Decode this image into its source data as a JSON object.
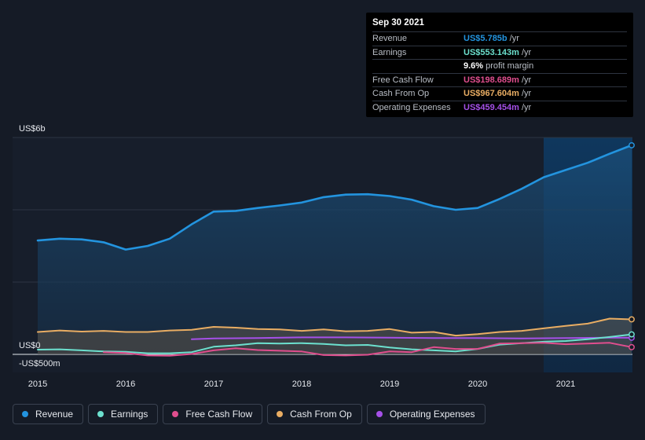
{
  "tooltip": {
    "date": "Sep 30 2021",
    "rows": [
      {
        "label": "Revenue",
        "value": "US$5.785b",
        "unit": "/yr",
        "color": "#2394df"
      },
      {
        "label": "Earnings",
        "value": "US$553.143m",
        "unit": "/yr",
        "color": "#6ce0ce"
      },
      {
        "label": "",
        "value": "9.6%",
        "unit": "profit margin",
        "color": "#ffffff"
      },
      {
        "label": "Free Cash Flow",
        "value": "US$198.689m",
        "unit": "/yr",
        "color": "#e04e8e"
      },
      {
        "label": "Cash From Op",
        "value": "US$967.604m",
        "unit": "/yr",
        "color": "#e9ad63"
      },
      {
        "label": "Operating Expenses",
        "value": "US$459.454m",
        "unit": "/yr",
        "color": "#a550e8"
      }
    ]
  },
  "legend": [
    {
      "label": "Revenue",
      "color": "#2394df"
    },
    {
      "label": "Earnings",
      "color": "#6ce0ce"
    },
    {
      "label": "Free Cash Flow",
      "color": "#e04e8e"
    },
    {
      "label": "Cash From Op",
      "color": "#e9ad63"
    },
    {
      "label": "Operating Expenses",
      "color": "#a550e8"
    }
  ],
  "chart_data": {
    "type": "area",
    "title": "",
    "ylim": [
      -500,
      6000
    ],
    "y_tick_labels": [
      {
        "value": 6000,
        "label": "US$6b"
      },
      {
        "value": 0,
        "label": "US$0"
      },
      {
        "value": -500,
        "label": "-US$500m"
      }
    ],
    "x_tick_labels": [
      "2015",
      "2016",
      "2017",
      "2018",
      "2019",
      "2020",
      "2021"
    ],
    "xlim": [
      2014.85,
      2021.75
    ],
    "highlight_start": 2020.75,
    "grid": true,
    "series": [
      {
        "name": "Revenue",
        "color": "#2394df",
        "fill": true,
        "points": [
          [
            2015.0,
            3150
          ],
          [
            2015.25,
            3200
          ],
          [
            2015.5,
            3180
          ],
          [
            2015.75,
            3100
          ],
          [
            2016.0,
            2900
          ],
          [
            2016.25,
            3000
          ],
          [
            2016.5,
            3200
          ],
          [
            2016.75,
            3600
          ],
          [
            2017.0,
            3950
          ],
          [
            2017.25,
            3970
          ],
          [
            2017.5,
            4050
          ],
          [
            2017.75,
            4120
          ],
          [
            2018.0,
            4200
          ],
          [
            2018.25,
            4350
          ],
          [
            2018.5,
            4420
          ],
          [
            2018.75,
            4430
          ],
          [
            2019.0,
            4380
          ],
          [
            2019.25,
            4280
          ],
          [
            2019.5,
            4100
          ],
          [
            2019.75,
            4000
          ],
          [
            2020.0,
            4050
          ],
          [
            2020.25,
            4300
          ],
          [
            2020.5,
            4580
          ],
          [
            2020.75,
            4900
          ],
          [
            2021.0,
            5100
          ],
          [
            2021.25,
            5300
          ],
          [
            2021.5,
            5550
          ],
          [
            2021.75,
            5785
          ]
        ]
      },
      {
        "name": "Cash From Op",
        "color": "#e9ad63",
        "fill": true,
        "points": [
          [
            2015.0,
            620
          ],
          [
            2015.25,
            660
          ],
          [
            2015.5,
            630
          ],
          [
            2015.75,
            650
          ],
          [
            2016.0,
            620
          ],
          [
            2016.25,
            620
          ],
          [
            2016.5,
            660
          ],
          [
            2016.75,
            680
          ],
          [
            2017.0,
            760
          ],
          [
            2017.25,
            740
          ],
          [
            2017.5,
            700
          ],
          [
            2017.75,
            690
          ],
          [
            2018.0,
            650
          ],
          [
            2018.25,
            690
          ],
          [
            2018.5,
            640
          ],
          [
            2018.75,
            650
          ],
          [
            2019.0,
            700
          ],
          [
            2019.25,
            600
          ],
          [
            2019.5,
            620
          ],
          [
            2019.75,
            520
          ],
          [
            2020.0,
            560
          ],
          [
            2020.25,
            620
          ],
          [
            2020.5,
            650
          ],
          [
            2020.75,
            720
          ],
          [
            2021.0,
            790
          ],
          [
            2021.25,
            850
          ],
          [
            2021.5,
            990
          ],
          [
            2021.75,
            968
          ]
        ]
      },
      {
        "name": "Operating Expenses",
        "color": "#a550e8",
        "fill": false,
        "points": [
          [
            2016.75,
            420
          ],
          [
            2017.0,
            440
          ],
          [
            2017.5,
            450
          ],
          [
            2018.0,
            470
          ],
          [
            2018.5,
            470
          ],
          [
            2019.0,
            460
          ],
          [
            2019.5,
            450
          ],
          [
            2020.0,
            450
          ],
          [
            2020.5,
            440
          ],
          [
            2021.0,
            450
          ],
          [
            2021.5,
            460
          ],
          [
            2021.75,
            459
          ]
        ]
      },
      {
        "name": "Earnings",
        "color": "#6ce0ce",
        "fill": false,
        "points": [
          [
            2015.0,
            130
          ],
          [
            2015.25,
            140
          ],
          [
            2015.5,
            110
          ],
          [
            2015.75,
            80
          ],
          [
            2016.0,
            70
          ],
          [
            2016.25,
            30
          ],
          [
            2016.5,
            30
          ],
          [
            2016.75,
            60
          ],
          [
            2017.0,
            210
          ],
          [
            2017.25,
            250
          ],
          [
            2017.5,
            310
          ],
          [
            2017.75,
            300
          ],
          [
            2018.0,
            310
          ],
          [
            2018.25,
            290
          ],
          [
            2018.5,
            250
          ],
          [
            2018.75,
            260
          ],
          [
            2019.0,
            190
          ],
          [
            2019.25,
            140
          ],
          [
            2019.5,
            110
          ],
          [
            2019.75,
            80
          ],
          [
            2020.0,
            150
          ],
          [
            2020.25,
            270
          ],
          [
            2020.5,
            310
          ],
          [
            2020.75,
            350
          ],
          [
            2021.0,
            370
          ],
          [
            2021.25,
            420
          ],
          [
            2021.5,
            480
          ],
          [
            2021.75,
            553
          ]
        ]
      },
      {
        "name": "Free Cash Flow",
        "color": "#e04e8e",
        "fill": false,
        "points": [
          [
            2015.75,
            60
          ],
          [
            2016.0,
            40
          ],
          [
            2016.25,
            -30
          ],
          [
            2016.5,
            -40
          ],
          [
            2016.75,
            10
          ],
          [
            2017.0,
            110
          ],
          [
            2017.25,
            170
          ],
          [
            2017.5,
            120
          ],
          [
            2017.75,
            100
          ],
          [
            2018.0,
            80
          ],
          [
            2018.25,
            -20
          ],
          [
            2018.5,
            -30
          ],
          [
            2018.75,
            -10
          ],
          [
            2019.0,
            80
          ],
          [
            2019.25,
            60
          ],
          [
            2019.5,
            200
          ],
          [
            2019.75,
            150
          ],
          [
            2020.0,
            150
          ],
          [
            2020.25,
            300
          ],
          [
            2020.5,
            310
          ],
          [
            2020.75,
            320
          ],
          [
            2021.0,
            280
          ],
          [
            2021.25,
            300
          ],
          [
            2021.5,
            320
          ],
          [
            2021.75,
            199
          ]
        ]
      }
    ]
  }
}
